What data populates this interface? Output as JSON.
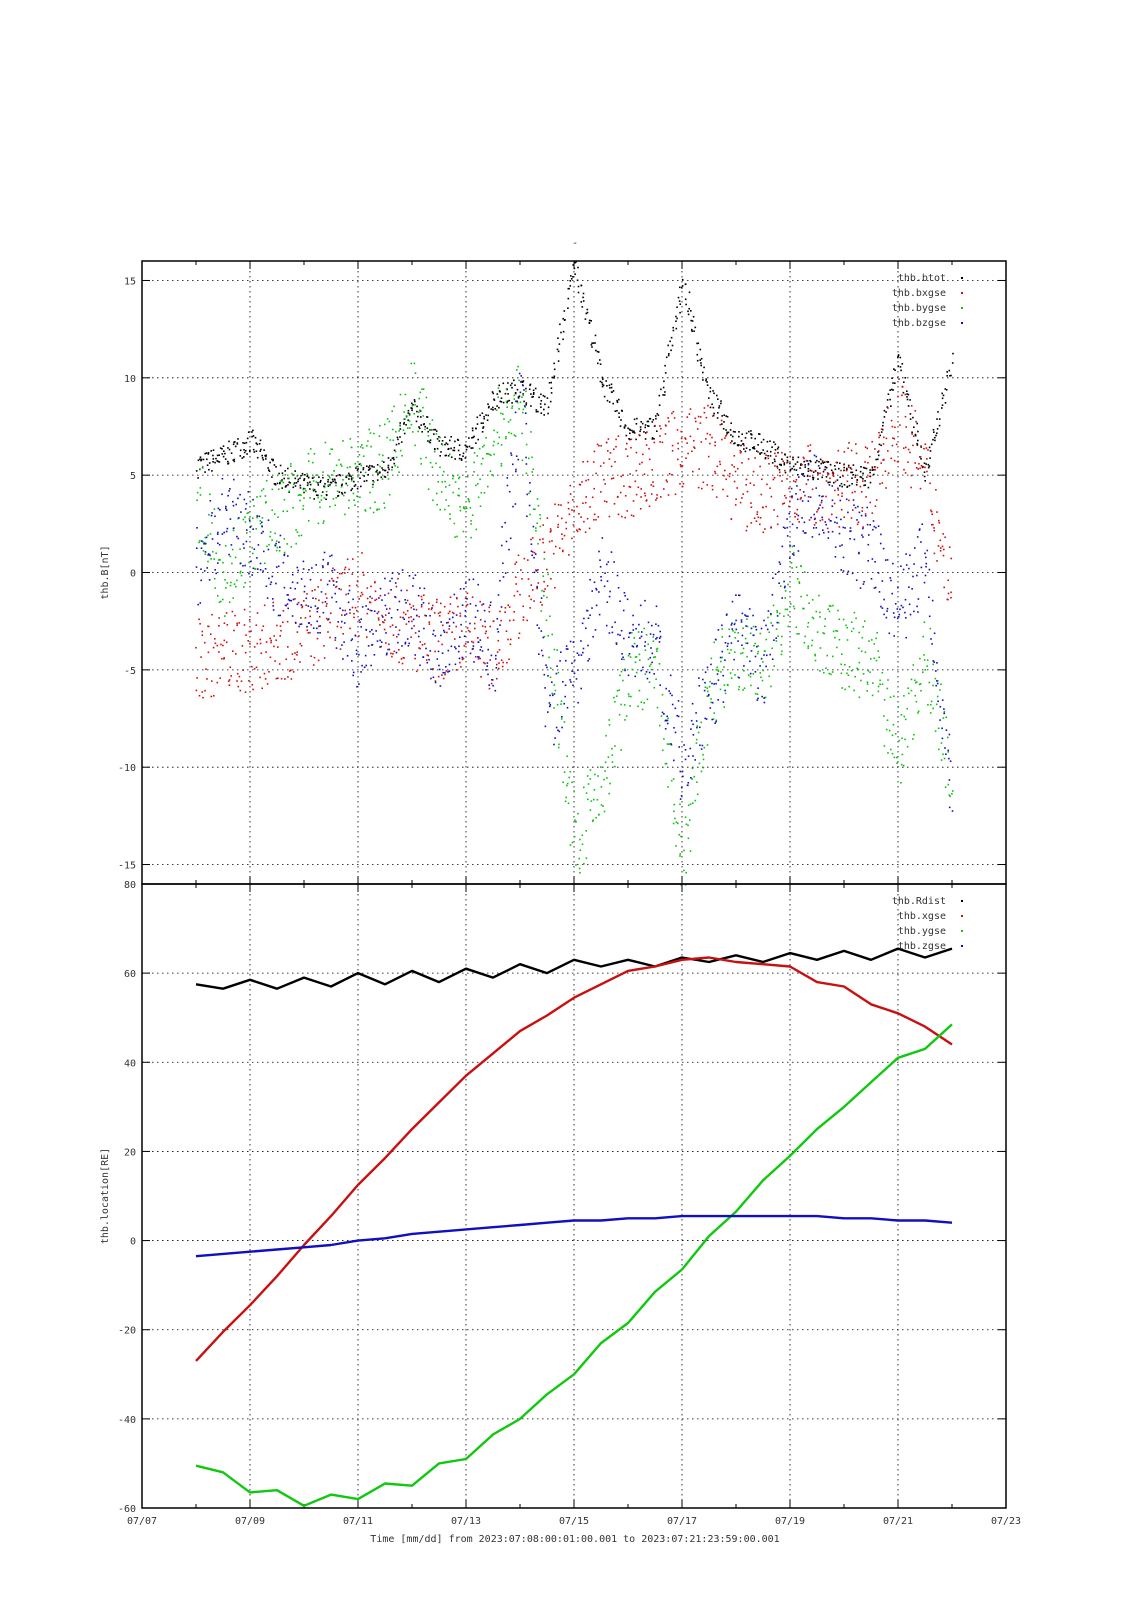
{
  "figure": {
    "top_marker": "-",
    "footer": "Time [mm/dd]  from 2023:07:08:00:01:00.001  to  2023:07:21:23:59:00.001"
  },
  "chart_data": [
    {
      "type": "scatter",
      "ylabel": "thb.B[nT]",
      "xlim": [
        "2023-07-07",
        "2023-07-23"
      ],
      "ylim": [
        -16,
        16
      ],
      "yticks": [
        -15,
        -10,
        -5,
        0,
        5,
        10,
        15
      ],
      "grid": true,
      "legend_position": "top-right",
      "series": [
        {
          "name": "thb.btot",
          "color": "#000000",
          "x": [
            "2023-07-08",
            "2023-07-08 12:00",
            "2023-07-09",
            "2023-07-09 12:00",
            "2023-07-10",
            "2023-07-10 12:00",
            "2023-07-11",
            "2023-07-11 12:00",
            "2023-07-12",
            "2023-07-12 12:00",
            "2023-07-13",
            "2023-07-13 12:00",
            "2023-07-14",
            "2023-07-14 12:00",
            "2023-07-15",
            "2023-07-15 12:00",
            "2023-07-16",
            "2023-07-16 12:00",
            "2023-07-17",
            "2023-07-17 12:00",
            "2023-07-18",
            "2023-07-18 12:00",
            "2023-07-19",
            "2023-07-19 12:00",
            "2023-07-20",
            "2023-07-20 12:00",
            "2023-07-21",
            "2023-07-21 12:00",
            "2023-07-22"
          ],
          "y": [
            5.5,
            6.0,
            6.8,
            5.0,
            4.5,
            4.3,
            5.0,
            5.2,
            8.5,
            6.5,
            6.3,
            9.0,
            9.5,
            8.5,
            16.0,
            10.0,
            7.3,
            7.5,
            15.0,
            9.0,
            7.0,
            6.5,
            5.5,
            5.3,
            5.0,
            5.0,
            11.0,
            5.0,
            11.0
          ]
        },
        {
          "name": "thb.bxgse",
          "color": "#d01010",
          "x": [
            "2023-07-08",
            "2023-07-08 12:00",
            "2023-07-09",
            "2023-07-09 12:00",
            "2023-07-10",
            "2023-07-10 12:00",
            "2023-07-11",
            "2023-07-11 12:00",
            "2023-07-12",
            "2023-07-12 12:00",
            "2023-07-13",
            "2023-07-13 12:00",
            "2023-07-14",
            "2023-07-14 12:00",
            "2023-07-15",
            "2023-07-15 12:00",
            "2023-07-16",
            "2023-07-16 12:00",
            "2023-07-17",
            "2023-07-17 12:00",
            "2023-07-18",
            "2023-07-18 12:00",
            "2023-07-19",
            "2023-07-19 12:00",
            "2023-07-20",
            "2023-07-20 12:00",
            "2023-07-21",
            "2023-07-21 12:00",
            "2023-07-22"
          ],
          "y": [
            -4.5,
            -4.0,
            -4.0,
            -3.5,
            -3.0,
            -2.0,
            -1.0,
            -2.0,
            -3.0,
            -3.5,
            -3.0,
            -4.0,
            -1.0,
            1.0,
            3.0,
            5.0,
            5.0,
            5.5,
            6.5,
            6.5,
            4.5,
            4.0,
            4.5,
            4.5,
            4.5,
            4.5,
            8.0,
            5.0,
            -1.0
          ]
        },
        {
          "name": "thb.bygse",
          "color": "#10c010",
          "x": [
            "2023-07-08",
            "2023-07-08 12:00",
            "2023-07-09",
            "2023-07-09 12:00",
            "2023-07-10",
            "2023-07-10 12:00",
            "2023-07-11",
            "2023-07-11 12:00",
            "2023-07-12",
            "2023-07-12 12:00",
            "2023-07-13",
            "2023-07-13 12:00",
            "2023-07-14",
            "2023-07-14 12:00",
            "2023-07-15",
            "2023-07-15 12:00",
            "2023-07-16",
            "2023-07-16 12:00",
            "2023-07-17",
            "2023-07-17 12:00",
            "2023-07-18",
            "2023-07-18 12:00",
            "2023-07-19",
            "2023-07-19 12:00",
            "2023-07-20",
            "2023-07-20 12:00",
            "2023-07-21",
            "2023-07-21 12:00",
            "2023-07-22"
          ],
          "y": [
            4.0,
            0.0,
            2.0,
            3.0,
            4.0,
            5.0,
            5.0,
            5.5,
            9.0,
            5.0,
            3.0,
            7.0,
            9.0,
            -2.0,
            -14.0,
            -11.0,
            -5.0,
            -5.0,
            -15.0,
            -6.0,
            -4.0,
            -5.0,
            -0.5,
            -3.0,
            -4.0,
            -4.5,
            -9.0,
            -4.0,
            -11.0
          ]
        },
        {
          "name": "thb.bzgse",
          "color": "#1010c0",
          "x": [
            "2023-07-08",
            "2023-07-08 12:00",
            "2023-07-09",
            "2023-07-09 12:00",
            "2023-07-10",
            "2023-07-10 12:00",
            "2023-07-11",
            "2023-07-11 12:00",
            "2023-07-12",
            "2023-07-12 12:00",
            "2023-07-13",
            "2023-07-13 12:00",
            "2023-07-14",
            "2023-07-14 12:00",
            "2023-07-15",
            "2023-07-15 12:00",
            "2023-07-16",
            "2023-07-16 12:00",
            "2023-07-17",
            "2023-07-17 12:00",
            "2023-07-18",
            "2023-07-18 12:00",
            "2023-07-19",
            "2023-07-19 12:00",
            "2023-07-20",
            "2023-07-20 12:00",
            "2023-07-21",
            "2023-07-21 12:00",
            "2023-07-22"
          ],
          "y": [
            0.0,
            3.0,
            2.0,
            0.0,
            -1.0,
            -1.0,
            -4.0,
            -2.0,
            -2.0,
            -4.0,
            -2.0,
            -4.0,
            9.0,
            -7.0,
            -5.0,
            0.0,
            -3.5,
            -3.5,
            -10.0,
            -6.0,
            -3.0,
            -5.0,
            3.0,
            4.0,
            2.0,
            1.0,
            -2.0,
            1.0,
            -12.0
          ]
        }
      ]
    },
    {
      "type": "line",
      "ylabel": "thb.location[RE]",
      "xlim": [
        "2023-07-07",
        "2023-07-23"
      ],
      "xticks": [
        "07/07",
        "07/09",
        "07/11",
        "07/13",
        "07/15",
        "07/17",
        "07/19",
        "07/21",
        "07/23"
      ],
      "ylim": [
        -60,
        80
      ],
      "yticks": [
        -60,
        -40,
        -20,
        0,
        20,
        40,
        60,
        80
      ],
      "grid": true,
      "legend_position": "top-right",
      "series": [
        {
          "name": "thb.Rdist",
          "color": "#000000",
          "x": [
            "2023-07-08",
            "2023-07-08 12:00",
            "2023-07-09",
            "2023-07-09 12:00",
            "2023-07-10",
            "2023-07-10 12:00",
            "2023-07-11",
            "2023-07-11 12:00",
            "2023-07-12",
            "2023-07-12 12:00",
            "2023-07-13",
            "2023-07-13 12:00",
            "2023-07-14",
            "2023-07-14 12:00",
            "2023-07-15",
            "2023-07-15 12:00",
            "2023-07-16",
            "2023-07-16 12:00",
            "2023-07-17",
            "2023-07-17 12:00",
            "2023-07-18",
            "2023-07-18 12:00",
            "2023-07-19",
            "2023-07-19 12:00",
            "2023-07-20",
            "2023-07-20 12:00",
            "2023-07-21",
            "2023-07-21 12:00",
            "2023-07-22"
          ],
          "y": [
            57.5,
            56.5,
            58.5,
            56.5,
            59.0,
            57.0,
            60.0,
            57.5,
            60.5,
            58.0,
            61.0,
            59.0,
            62.0,
            60.0,
            63.0,
            61.5,
            63.0,
            61.5,
            63.5,
            62.5,
            64.0,
            62.5,
            64.5,
            63.0,
            65.0,
            63.0,
            65.5,
            63.5,
            65.5
          ]
        },
        {
          "name": "thb.xgse",
          "color": "#c81010",
          "x": [
            "2023-07-08",
            "2023-07-08 12:00",
            "2023-07-09",
            "2023-07-09 12:00",
            "2023-07-10",
            "2023-07-10 12:00",
            "2023-07-11",
            "2023-07-11 12:00",
            "2023-07-12",
            "2023-07-12 12:00",
            "2023-07-13",
            "2023-07-13 12:00",
            "2023-07-14",
            "2023-07-14 12:00",
            "2023-07-15",
            "2023-07-15 12:00",
            "2023-07-16",
            "2023-07-16 12:00",
            "2023-07-17",
            "2023-07-17 12:00",
            "2023-07-18",
            "2023-07-18 12:00",
            "2023-07-19",
            "2023-07-19 12:00",
            "2023-07-20",
            "2023-07-20 12:00",
            "2023-07-21",
            "2023-07-21 12:00",
            "2023-07-22"
          ],
          "y": [
            -27.0,
            -20.5,
            -14.5,
            -8.0,
            -1.0,
            5.5,
            12.5,
            18.5,
            25.0,
            31.0,
            37.0,
            42.0,
            47.0,
            50.5,
            54.5,
            57.5,
            60.5,
            61.5,
            63.0,
            63.5,
            62.5,
            62.0,
            61.5,
            58.0,
            57.0,
            53.0,
            51.0,
            48.0,
            44.0
          ]
        },
        {
          "name": "thb.ygse",
          "color": "#10c810",
          "x": [
            "2023-07-08",
            "2023-07-08 12:00",
            "2023-07-09",
            "2023-07-09 12:00",
            "2023-07-10",
            "2023-07-10 12:00",
            "2023-07-11",
            "2023-07-11 12:00",
            "2023-07-12",
            "2023-07-12 12:00",
            "2023-07-13",
            "2023-07-13 12:00",
            "2023-07-14",
            "2023-07-14 12:00",
            "2023-07-15",
            "2023-07-15 12:00",
            "2023-07-16",
            "2023-07-16 12:00",
            "2023-07-17",
            "2023-07-17 12:00",
            "2023-07-18",
            "2023-07-18 12:00",
            "2023-07-19",
            "2023-07-19 12:00",
            "2023-07-20",
            "2023-07-20 12:00",
            "2023-07-21",
            "2023-07-21 12:00",
            "2023-07-22"
          ],
          "y": [
            -50.5,
            -52.0,
            -56.5,
            -56.0,
            -59.5,
            -57.0,
            -58.0,
            -54.5,
            -55.0,
            -50.0,
            -49.0,
            -43.5,
            -40.0,
            -34.5,
            -30.0,
            -23.0,
            -18.5,
            -11.5,
            -6.5,
            1.0,
            6.5,
            13.5,
            19.0,
            25.0,
            30.0,
            35.5,
            41.0,
            43.0,
            48.5
          ]
        },
        {
          "name": "thb.zgse",
          "color": "#1010c0",
          "x": [
            "2023-07-08",
            "2023-07-08 12:00",
            "2023-07-09",
            "2023-07-09 12:00",
            "2023-07-10",
            "2023-07-10 12:00",
            "2023-07-11",
            "2023-07-11 12:00",
            "2023-07-12",
            "2023-07-12 12:00",
            "2023-07-13",
            "2023-07-13 12:00",
            "2023-07-14",
            "2023-07-14 12:00",
            "2023-07-15",
            "2023-07-15 12:00",
            "2023-07-16",
            "2023-07-16 12:00",
            "2023-07-17",
            "2023-07-17 12:00",
            "2023-07-18",
            "2023-07-18 12:00",
            "2023-07-19",
            "2023-07-19 12:00",
            "2023-07-20",
            "2023-07-20 12:00",
            "2023-07-21",
            "2023-07-21 12:00",
            "2023-07-22"
          ],
          "y": [
            -3.5,
            -3.0,
            -2.5,
            -2.0,
            -1.5,
            -1.0,
            0.0,
            0.5,
            1.5,
            2.0,
            2.5,
            3.0,
            3.5,
            4.0,
            4.5,
            4.5,
            5.0,
            5.0,
            5.5,
            5.5,
            5.5,
            5.5,
            5.5,
            5.5,
            5.0,
            5.0,
            4.5,
            4.5,
            4.0
          ]
        }
      ]
    }
  ]
}
